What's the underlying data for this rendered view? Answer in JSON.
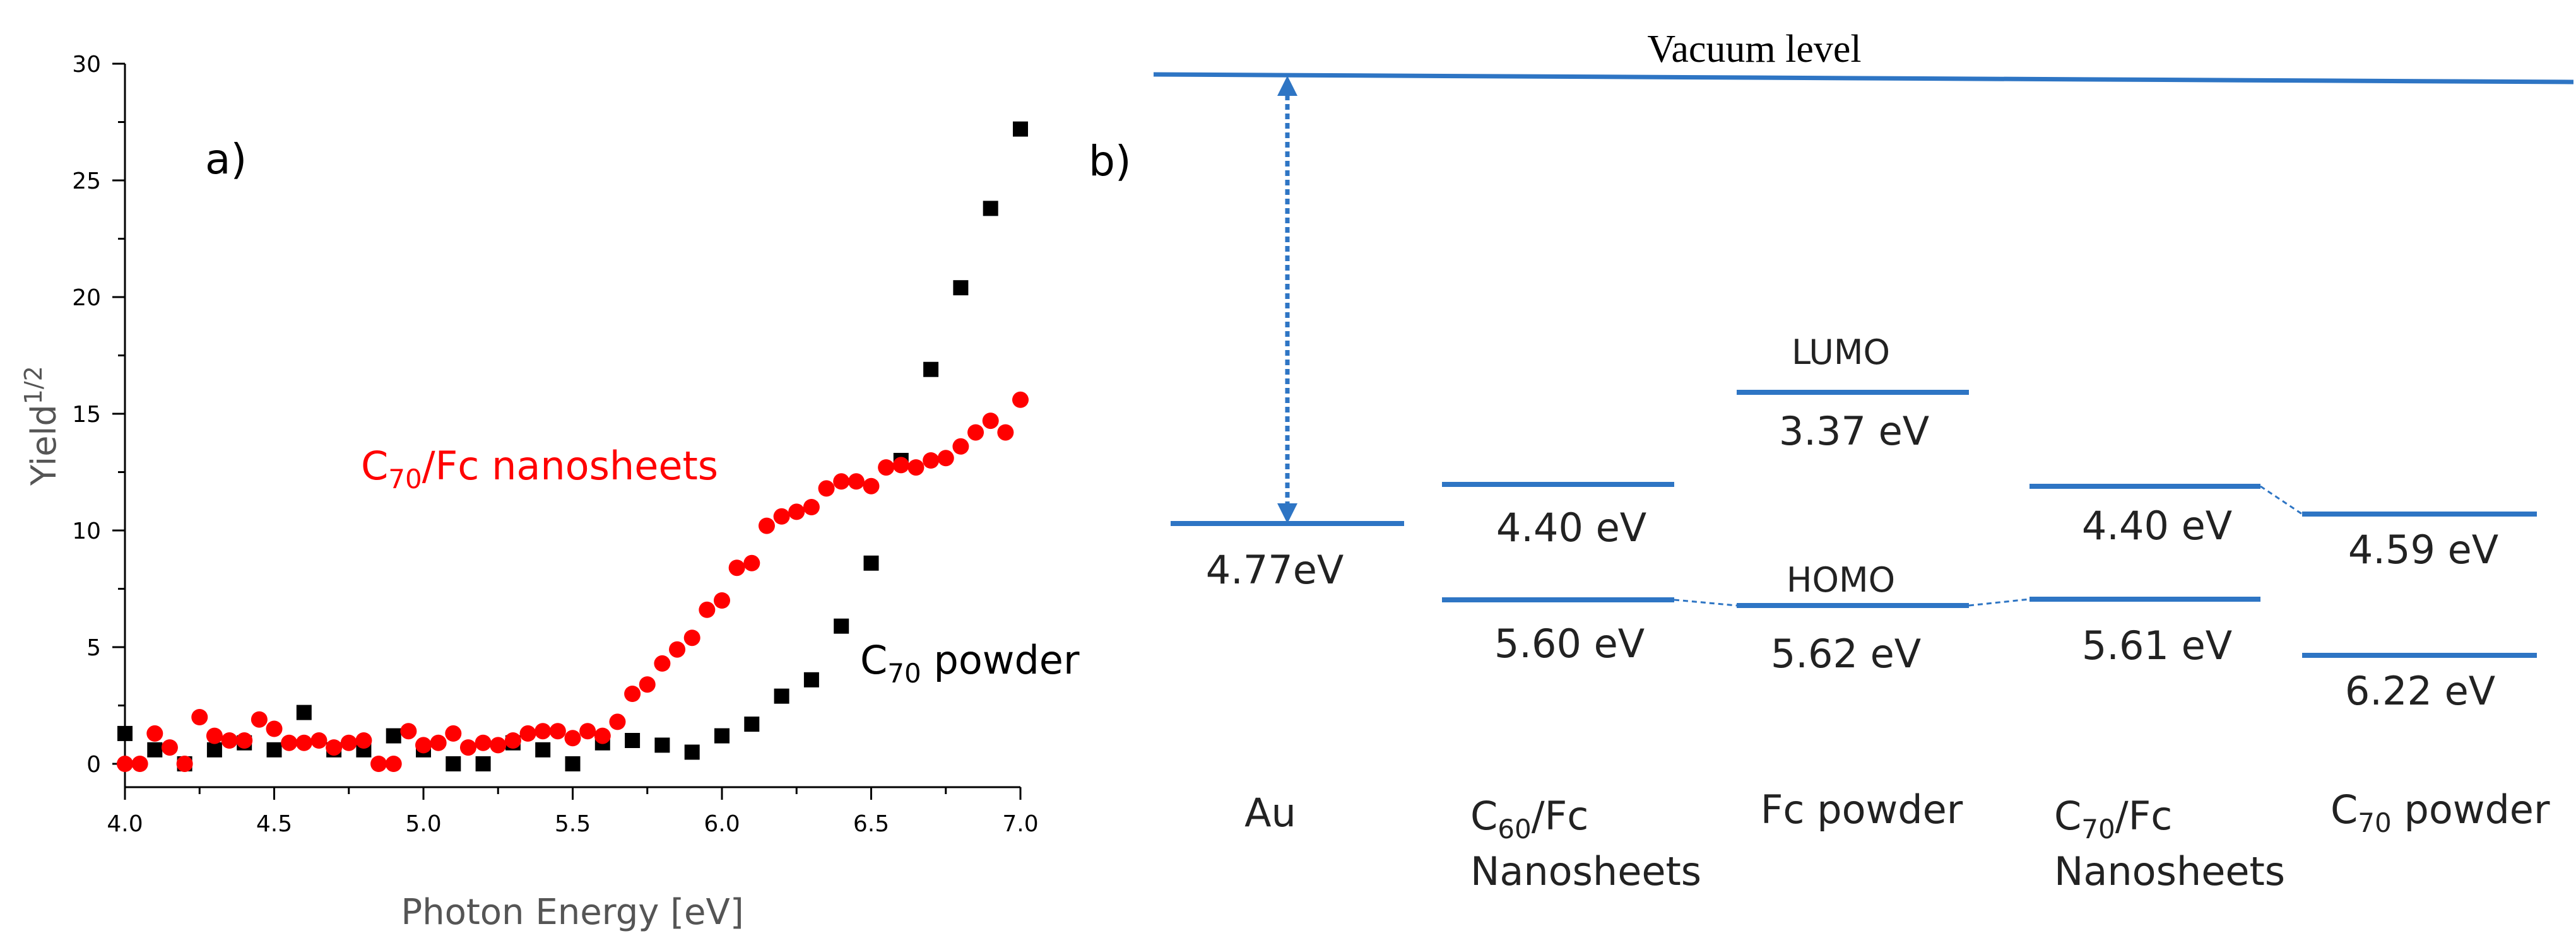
{
  "chart_data": [
    {
      "type": "scatter",
      "panel_label": "a)",
      "xlabel": "Photon Energy [eV]",
      "ylabel": {
        "base": "Yield",
        "sup": "1/2"
      },
      "xlim": [
        4.0,
        7.0
      ],
      "ylim": [
        -1,
        30
      ],
      "x_ticks": [
        "4.0",
        "4.5",
        "5.0",
        "5.5",
        "6.0",
        "6.5",
        "7.0"
      ],
      "y_ticks": [
        "0",
        "5",
        "10",
        "15",
        "20",
        "25",
        "30"
      ],
      "series": [
        {
          "name": "C70/Fc nanosheets",
          "label_parts": {
            "c": "C",
            "sub": "70",
            "rest": "/Fc nanosheets"
          },
          "color": "#ff0000",
          "marker": "circle",
          "points": [
            [
              4.0,
              0.0
            ],
            [
              4.05,
              0.0
            ],
            [
              4.1,
              1.3
            ],
            [
              4.15,
              0.7
            ],
            [
              4.2,
              0.0
            ],
            [
              4.25,
              2.0
            ],
            [
              4.3,
              1.2
            ],
            [
              4.35,
              1.0
            ],
            [
              4.4,
              1.0
            ],
            [
              4.45,
              1.9
            ],
            [
              4.5,
              1.5
            ],
            [
              4.55,
              0.9
            ],
            [
              4.6,
              0.9
            ],
            [
              4.65,
              1.0
            ],
            [
              4.7,
              0.7
            ],
            [
              4.75,
              0.9
            ],
            [
              4.8,
              1.0
            ],
            [
              4.85,
              0.0
            ],
            [
              4.9,
              0.0
            ],
            [
              4.95,
              1.4
            ],
            [
              5.0,
              0.8
            ],
            [
              5.05,
              0.9
            ],
            [
              5.1,
              1.3
            ],
            [
              5.15,
              0.7
            ],
            [
              5.2,
              0.9
            ],
            [
              5.25,
              0.8
            ],
            [
              5.3,
              1.0
            ],
            [
              5.35,
              1.3
            ],
            [
              5.4,
              1.4
            ],
            [
              5.45,
              1.4
            ],
            [
              5.5,
              1.1
            ],
            [
              5.55,
              1.4
            ],
            [
              5.6,
              1.2
            ],
            [
              5.65,
              1.8
            ],
            [
              5.7,
              3.0
            ],
            [
              5.75,
              3.4
            ],
            [
              5.8,
              4.3
            ],
            [
              5.85,
              4.9
            ],
            [
              5.9,
              5.4
            ],
            [
              5.95,
              6.6
            ],
            [
              6.0,
              7.0
            ],
            [
              6.05,
              8.4
            ],
            [
              6.1,
              8.6
            ],
            [
              6.15,
              10.2
            ],
            [
              6.2,
              10.6
            ],
            [
              6.25,
              10.8
            ],
            [
              6.3,
              11.0
            ],
            [
              6.35,
              11.8
            ],
            [
              6.4,
              12.1
            ],
            [
              6.45,
              12.1
            ],
            [
              6.5,
              11.9
            ],
            [
              6.55,
              12.7
            ],
            [
              6.6,
              12.8
            ],
            [
              6.65,
              12.7
            ],
            [
              6.7,
              13.0
            ],
            [
              6.75,
              13.1
            ],
            [
              6.8,
              13.6
            ],
            [
              6.85,
              14.2
            ],
            [
              6.9,
              14.7
            ],
            [
              6.95,
              14.2
            ],
            [
              7.0,
              15.6
            ]
          ]
        },
        {
          "name": "C70 powder",
          "label_parts": {
            "c": "C",
            "sub": "70",
            "rest": " powder"
          },
          "color": "#000000",
          "marker": "square",
          "points": [
            [
              4.0,
              1.3
            ],
            [
              4.1,
              0.6
            ],
            [
              4.2,
              0.0
            ],
            [
              4.3,
              0.6
            ],
            [
              4.4,
              0.9
            ],
            [
              4.5,
              0.6
            ],
            [
              4.6,
              2.2
            ],
            [
              4.7,
              0.6
            ],
            [
              4.8,
              0.6
            ],
            [
              4.9,
              1.2
            ],
            [
              5.0,
              0.6
            ],
            [
              5.1,
              0.0
            ],
            [
              5.2,
              0.0
            ],
            [
              5.3,
              0.9
            ],
            [
              5.4,
              0.6
            ],
            [
              5.5,
              0.0
            ],
            [
              5.6,
              0.9
            ],
            [
              5.7,
              1.0
            ],
            [
              5.8,
              0.8
            ],
            [
              5.9,
              0.5
            ],
            [
              6.0,
              1.2
            ],
            [
              6.1,
              1.7
            ],
            [
              6.2,
              2.9
            ],
            [
              6.3,
              3.6
            ],
            [
              6.4,
              5.9
            ],
            [
              6.5,
              8.6
            ],
            [
              6.6,
              13.0
            ],
            [
              6.7,
              16.9
            ],
            [
              6.8,
              20.4
            ],
            [
              6.9,
              23.8
            ],
            [
              7.0,
              27.2
            ]
          ]
        }
      ]
    },
    {
      "type": "energy-level-diagram",
      "panel_label": "b)",
      "vacuum_label": "Vacuum level",
      "columns": [
        {
          "name": "Au",
          "lines": [
            "Au"
          ],
          "levels": [
            {
              "value_ev": 4.77,
              "label": "4.77eV"
            }
          ]
        },
        {
          "name": "C60/Fc Nanosheets",
          "lines": [
            {
              "c": "C",
              "sub": "60",
              "rest": "/Fc"
            },
            "Nanosheets"
          ],
          "levels": [
            {
              "value_ev": 4.4,
              "label": "4.40 eV"
            },
            {
              "value_ev": 5.6,
              "label": "5.60 eV"
            }
          ]
        },
        {
          "name": "Fc powder",
          "lines": [
            "Fc powder"
          ],
          "levels": [
            {
              "value_ev": 3.37,
              "label": "3.37 eV",
              "title": "LUMO"
            },
            {
              "value_ev": 5.62,
              "label": "5.62 eV",
              "title": "HOMO"
            }
          ]
        },
        {
          "name": "C70/Fc Nanosheets",
          "lines": [
            {
              "c": "C",
              "sub": "70",
              "rest": "/Fc"
            },
            "Nanosheets"
          ],
          "levels": [
            {
              "value_ev": 4.4,
              "label": "4.40 eV"
            },
            {
              "value_ev": 5.61,
              "label": "5.61 eV"
            }
          ]
        },
        {
          "name": "C70 powder",
          "lines": [
            {
              "c": "C",
              "sub": "70",
              "rest": " powder"
            }
          ],
          "levels": [
            {
              "value_ev": 4.59,
              "label": "4.59 eV"
            },
            {
              "value_ev": 6.22,
              "label": "6.22 eV"
            }
          ]
        }
      ],
      "line_color": "#2e75c4"
    }
  ]
}
